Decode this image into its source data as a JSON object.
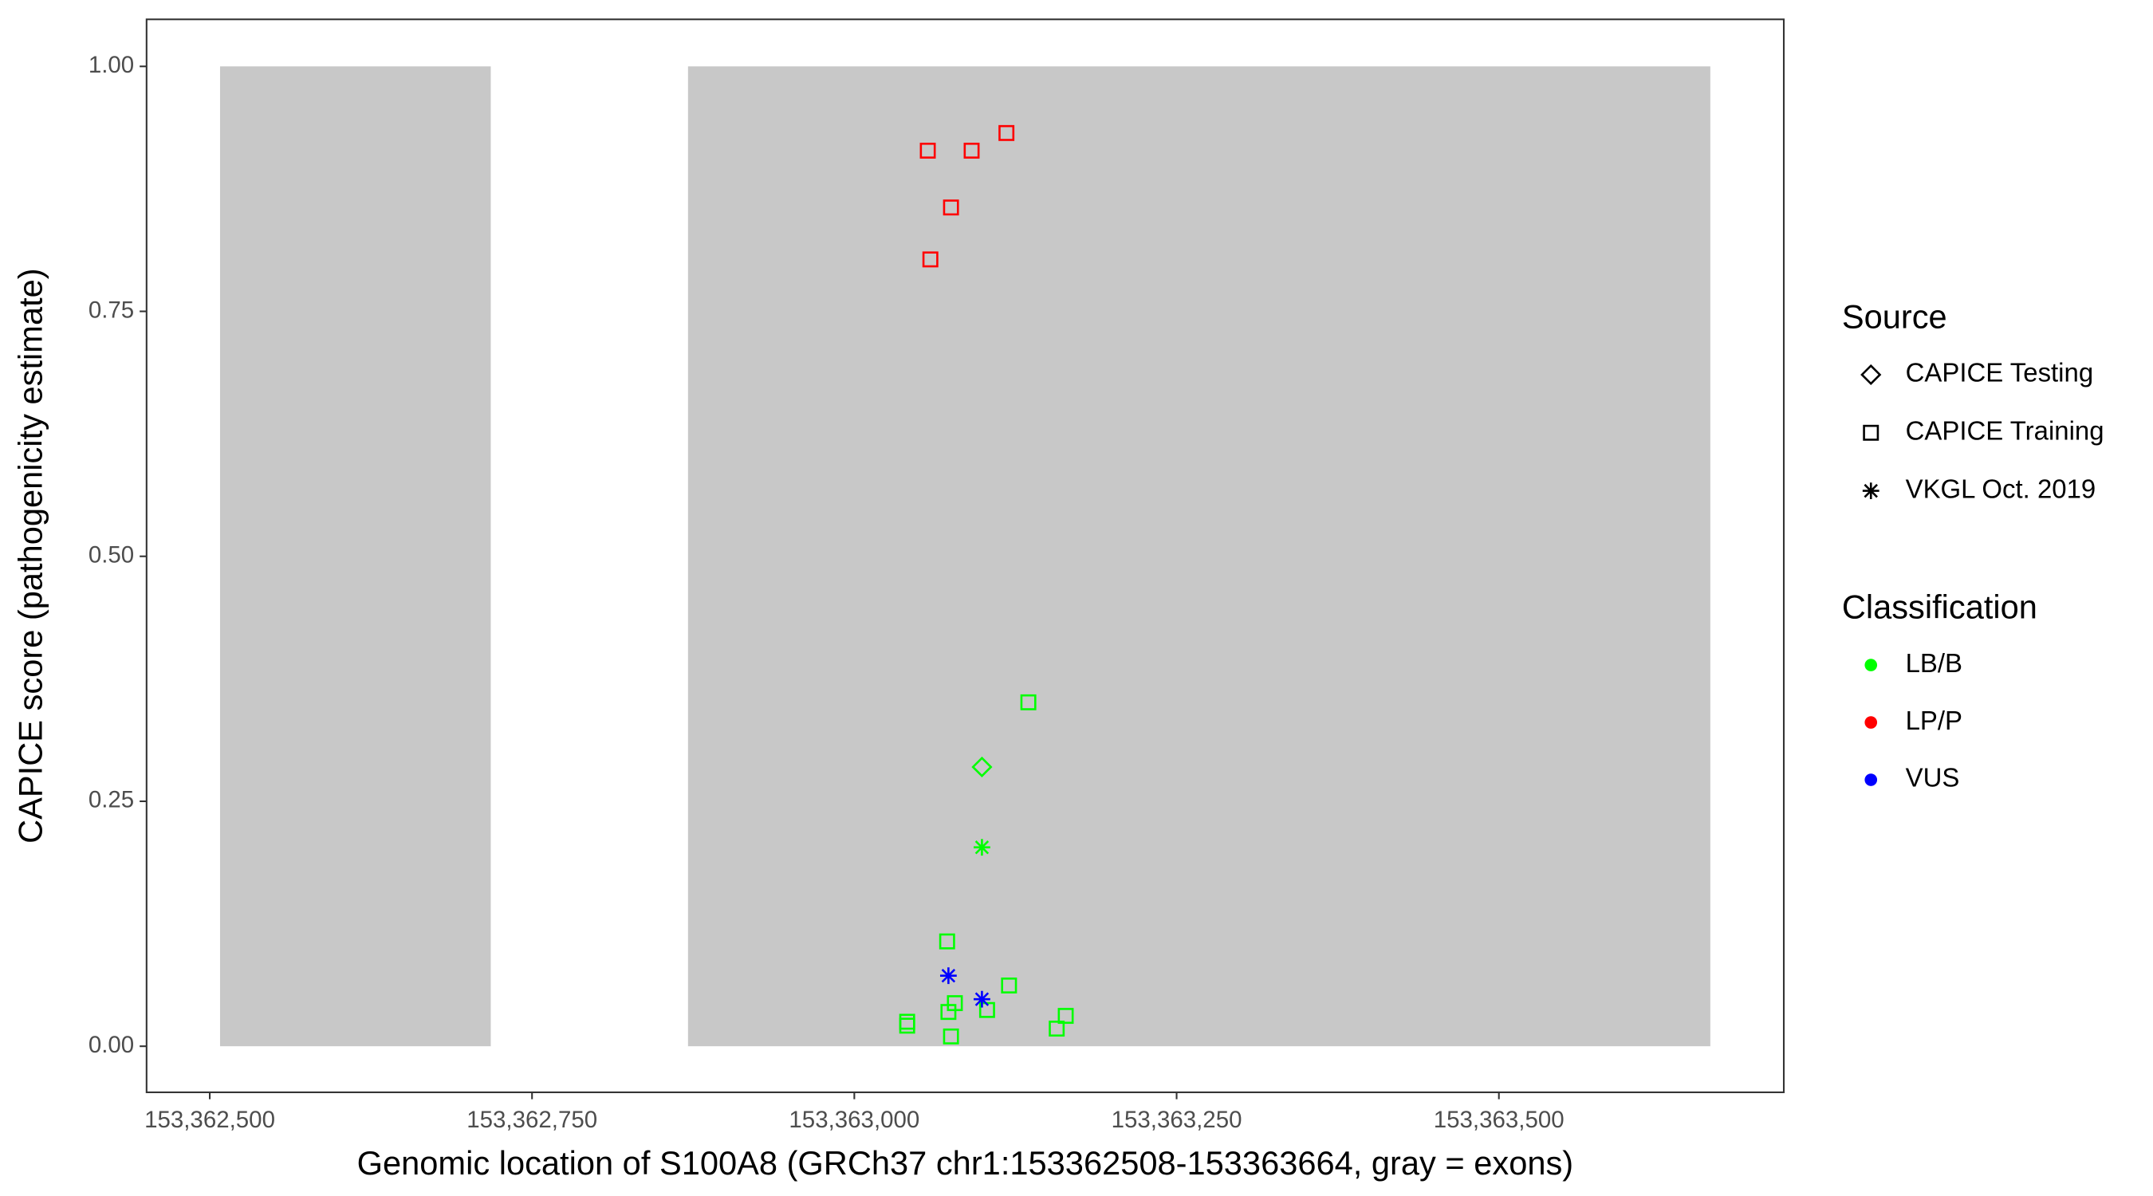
{
  "chart_data": {
    "type": "scatter",
    "x_label": "Genomic location of S100A8 (GRCh37 chr1:153362508-153363664, gray = exons)",
    "y_label": "CAPICE score (pathogenicity estimate)",
    "xlim": [
      153362451,
      153363721
    ],
    "ylim": [
      -0.047,
      1.048
    ],
    "xticks": [
      {
        "value": 153362500,
        "label": "153,362,500"
      },
      {
        "value": 153362750,
        "label": "153,362,750"
      },
      {
        "value": 153363000,
        "label": "153,363,000"
      },
      {
        "value": 153363250,
        "label": "153,363,250"
      },
      {
        "value": 153363500,
        "label": "153,363,500"
      }
    ],
    "yticks": [
      {
        "value": 0,
        "label": "0.00"
      },
      {
        "value": 0.25,
        "label": "0.25"
      },
      {
        "value": 0.5,
        "label": "0.50"
      },
      {
        "value": 0.75,
        "label": "0.75"
      },
      {
        "value": 1,
        "label": "1.00"
      }
    ],
    "grid": false,
    "shaded_regions": [
      {
        "x": [
          153362508,
          153362718
        ],
        "y": [
          0,
          1
        ],
        "color": "#c8c8c8"
      },
      {
        "x": [
          153362871,
          153363664
        ],
        "y": [
          0,
          1
        ],
        "color": "#c8c8c8"
      }
    ],
    "shape_legend": {
      "title": "Source",
      "items": [
        {
          "label": "CAPICE Testing",
          "shape": "diamond"
        },
        {
          "label": "CAPICE Training",
          "shape": "square"
        },
        {
          "label": "VKGL Oct. 2019",
          "shape": "asterisk"
        }
      ]
    },
    "color_legend": {
      "title": "Classification",
      "items": [
        {
          "label": "LB/B",
          "color": "#00ff00"
        },
        {
          "label": "LP/P",
          "color": "#ff0000"
        },
        {
          "label": "VUS",
          "color": "#0000ff"
        }
      ]
    },
    "series": [
      {
        "source": "CAPICE Training",
        "classification": "LP/P",
        "x": [
          153363057,
          153363091,
          153363118,
          153363075,
          153363059
        ],
        "values": [
          0.914,
          0.914,
          0.932,
          0.856,
          0.803
        ]
      },
      {
        "source": "CAPICE Training",
        "classification": "LB/B",
        "x": [
          153363135,
          153363072,
          153363120,
          153363078,
          153363073,
          153363103,
          153363041,
          153363041,
          153363075,
          153363157,
          153363164
        ],
        "values": [
          0.351,
          0.107,
          0.062,
          0.044,
          0.035,
          0.037,
          0.025,
          0.021,
          0.01,
          0.018,
          0.031
        ]
      },
      {
        "source": "CAPICE Testing",
        "classification": "LB/B",
        "x": [
          153363099
        ],
        "values": [
          0.285
        ]
      },
      {
        "source": "VKGL Oct. 2019",
        "classification": "LB/B",
        "x": [
          153363099
        ],
        "values": [
          0.203
        ]
      },
      {
        "source": "VKGL Oct. 2019",
        "classification": "VUS",
        "x": [
          153363073,
          153363099
        ],
        "values": [
          0.072,
          0.048
        ]
      }
    ]
  }
}
